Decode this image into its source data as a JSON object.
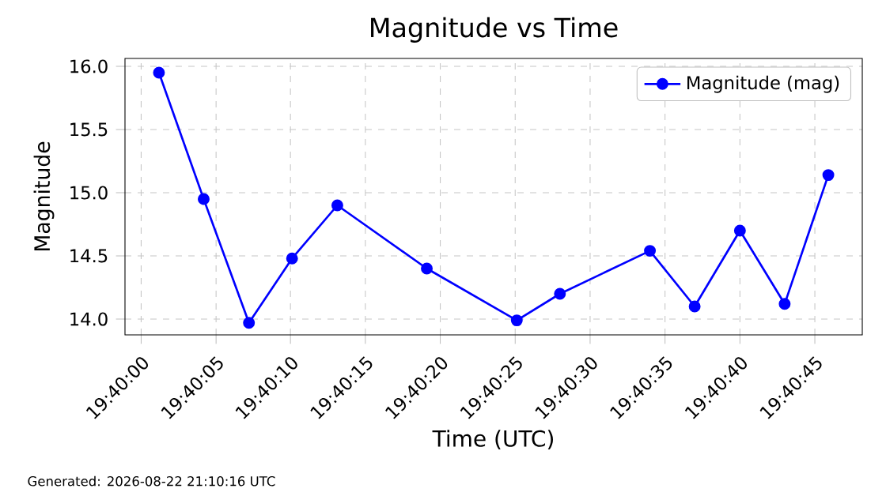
{
  "chart_data": {
    "type": "line",
    "title": "Magnitude vs Time",
    "xlabel": "Time (UTC)",
    "ylabel": "Magnitude",
    "annotations": [
      "Generated: 2026-08-22 21:10:16 UTC"
    ],
    "x": [
      19.667,
      19.66783,
      19.66867,
      19.66947,
      19.67031,
      19.67197,
      19.67364,
      19.67444,
      19.67611,
      19.67694,
      19.67778,
      19.67861,
      19.67942
    ],
    "series": [
      {
        "name": "Magnitude (mag)",
        "color": "#0000ff",
        "values": [
          15.95,
          14.95,
          13.97,
          14.48,
          14.9,
          14.4,
          13.99,
          14.2,
          14.54,
          14.1,
          14.7,
          14.12,
          15.14
        ]
      }
    ],
    "xlim": [
      19.66637,
      19.68005
    ],
    "xticks": [
      {
        "value": 19.66667,
        "label": "19:40:00"
      },
      {
        "value": 19.66806,
        "label": "19:40:05"
      },
      {
        "value": 19.66944,
        "label": "19:40:10"
      },
      {
        "value": 19.67083,
        "label": "19:40:15"
      },
      {
        "value": 19.67222,
        "label": "19:40:20"
      },
      {
        "value": 19.67361,
        "label": "19:40:25"
      },
      {
        "value": 19.675,
        "label": "19:40:30"
      },
      {
        "value": 19.67639,
        "label": "19:40:35"
      },
      {
        "value": 19.67778,
        "label": "19:40:40"
      },
      {
        "value": 19.67917,
        "label": "19:40:45"
      }
    ],
    "ylim": [
      13.875,
      16.0625
    ],
    "yticks": [
      {
        "value": 14,
        "label": "14.0"
      },
      {
        "value": 14.5,
        "label": "14.5"
      },
      {
        "value": 15,
        "label": "15.0"
      },
      {
        "value": 15.5,
        "label": "15.5"
      },
      {
        "value": 16,
        "label": "16.0"
      }
    ],
    "grid": true,
    "legend": "top right",
    "marker": "circle",
    "line_style": "solid"
  }
}
